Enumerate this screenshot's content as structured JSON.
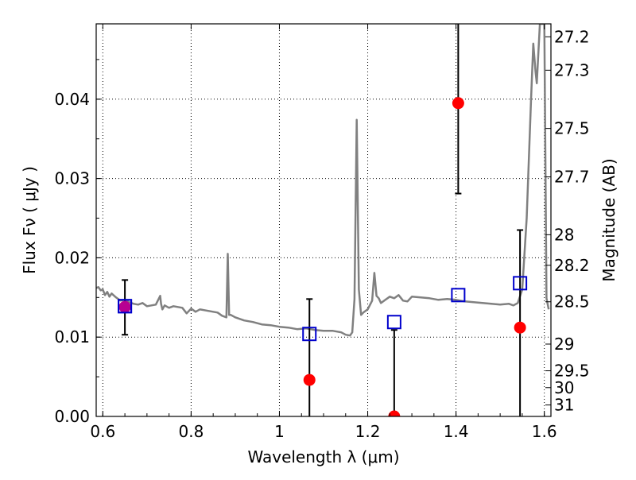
{
  "chart_data": {
    "type": "scatter",
    "xlabel": "Wavelength  λ (μm)",
    "ylabel": "Flux  Fν  ( μJy )",
    "ylabel_right": "Magnitude (AB)",
    "xlim": [
      0.585,
      1.615
    ],
    "ylim": [
      0.0,
      0.0495
    ],
    "x_ticks": [
      0.6,
      0.8,
      1.0,
      1.2,
      1.4,
      1.6
    ],
    "x_tick_labels": [
      "0.6",
      "0.8",
      "1",
      "1.2",
      "1.4",
      "1.6"
    ],
    "y_ticks": [
      0.0,
      0.01,
      0.02,
      0.03,
      0.04
    ],
    "y_tick_labels": [
      "0.00",
      "0.01",
      "0.02",
      "0.03",
      "0.04"
    ],
    "mag_ticks": [
      27.2,
      27.3,
      27.5,
      27.7,
      28,
      28.2,
      28.5,
      29,
      29.5,
      30,
      31
    ],
    "mag_tick_labels": [
      "27.2",
      "27.3",
      "27.5",
      "27.7",
      "28",
      "28.2",
      "28.5",
      "29",
      "29.5",
      "30",
      "31"
    ],
    "grid": true,
    "colors": {
      "model": "#808080",
      "observed": "#ff0000",
      "model_photometry": "#0000cc",
      "errorbar": "#000000",
      "blend": "#aa00aa"
    },
    "series": [
      {
        "type": "line",
        "color": "#808080",
        "x": [
          0.585,
          0.59,
          0.595,
          0.6,
          0.605,
          0.61,
          0.615,
          0.62,
          0.63,
          0.64,
          0.65,
          0.66,
          0.67,
          0.68,
          0.69,
          0.7,
          0.72,
          0.73,
          0.732,
          0.735,
          0.74,
          0.75,
          0.76,
          0.78,
          0.79,
          0.8,
          0.81,
          0.82,
          0.84,
          0.86,
          0.87,
          0.88,
          0.883,
          0.886,
          0.89,
          0.9,
          0.92,
          0.94,
          0.96,
          0.98,
          1.0,
          1.02,
          1.04,
          1.06,
          1.08,
          1.1,
          1.12,
          1.14,
          1.15,
          1.16,
          1.165,
          1.17,
          1.175,
          1.18,
          1.185,
          1.19,
          1.2,
          1.21,
          1.215,
          1.22,
          1.225,
          1.23,
          1.24,
          1.25,
          1.26,
          1.27,
          1.28,
          1.29,
          1.3,
          1.32,
          1.34,
          1.36,
          1.38,
          1.4,
          1.42,
          1.44,
          1.46,
          1.48,
          1.5,
          1.52,
          1.53,
          1.54,
          1.55,
          1.56,
          1.57,
          1.575,
          1.58,
          1.583,
          1.59,
          1.595,
          1.6,
          1.605,
          1.61
        ],
        "y": [
          0.0162,
          0.0163,
          0.0159,
          0.016,
          0.0153,
          0.0157,
          0.0151,
          0.0155,
          0.015,
          0.0146,
          0.0147,
          0.0144,
          0.0142,
          0.0141,
          0.0143,
          0.0139,
          0.0141,
          0.0152,
          0.0142,
          0.0135,
          0.014,
          0.0137,
          0.0139,
          0.0137,
          0.013,
          0.0136,
          0.0132,
          0.0135,
          0.0133,
          0.0131,
          0.0127,
          0.0125,
          0.0205,
          0.0128,
          0.0128,
          0.0125,
          0.0121,
          0.0119,
          0.0116,
          0.0115,
          0.0113,
          0.0112,
          0.011,
          0.0111,
          0.0109,
          0.0108,
          0.0108,
          0.0106,
          0.0103,
          0.0102,
          0.0106,
          0.0148,
          0.0374,
          0.016,
          0.0128,
          0.0131,
          0.0135,
          0.0146,
          0.0181,
          0.0152,
          0.0149,
          0.0143,
          0.0147,
          0.0151,
          0.0149,
          0.0153,
          0.0146,
          0.0145,
          0.0151,
          0.015,
          0.0149,
          0.0147,
          0.0148,
          0.0147,
          0.0145,
          0.0144,
          0.0143,
          0.0142,
          0.0141,
          0.0142,
          0.014,
          0.0143,
          0.016,
          0.025,
          0.04,
          0.047,
          0.0435,
          0.042,
          0.0495,
          0.0495,
          0.0495,
          0.0149,
          0.0135
        ]
      },
      {
        "type": "scatter",
        "marker": "square",
        "color": "#0000cc",
        "x": [
          0.65,
          1.068,
          1.26,
          1.405,
          1.545
        ],
        "y": [
          0.0139,
          0.0104,
          0.0119,
          0.0153,
          0.0168
        ]
      },
      {
        "type": "errorbar",
        "marker": "circle",
        "color": "#ff0000",
        "x": [
          0.65,
          1.068,
          1.26,
          1.405,
          1.545
        ],
        "y": [
          0.0138,
          0.0046,
          0.0,
          0.0395,
          0.0112
        ],
        "yerr_low": [
          0.0103,
          0.0,
          0.0,
          0.0281,
          0.0
        ],
        "yerr_high": [
          0.0172,
          0.0148,
          0.0109,
          0.0495,
          0.0235
        ]
      }
    ]
  }
}
